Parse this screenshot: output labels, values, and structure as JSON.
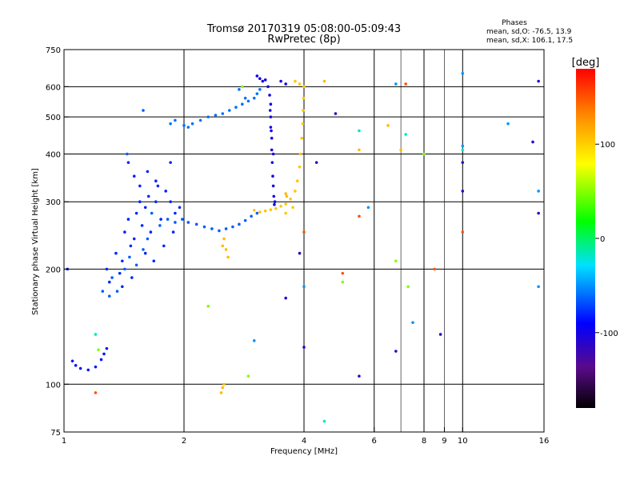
{
  "chart_data": {
    "type": "scatter",
    "title": "Tromsø 20170319 05:08:00-05:09:43",
    "subtitle": "RwPretec (8p)",
    "xlabel": "Frequency [MHz]",
    "ylabel": "Stationary phase Virtual Height [km]",
    "x_scale": "log",
    "y_scale": "log",
    "xlim": [
      1,
      16
    ],
    "ylim": [
      75,
      750
    ],
    "x_ticks": [
      1,
      2,
      4,
      6,
      8,
      9,
      10,
      16
    ],
    "y_ticks": [
      75,
      100,
      200,
      300,
      400,
      500,
      600,
      750
    ],
    "grid_x": [
      2,
      4,
      6,
      8,
      10
    ],
    "grid_y": [
      100,
      200,
      300,
      400,
      500,
      600
    ],
    "grid_minor_x": [
      7,
      9
    ],
    "grid": true,
    "phase_stats": {
      "heading": "Phases",
      "line_o": "mean, sd,O: -76.5, 13.9",
      "line_x": "mean, sd,X: 106.1, 17.5"
    },
    "colorbar": {
      "label": "[deg]",
      "range": [
        -180,
        180
      ],
      "ticks": [
        100,
        0,
        -100
      ],
      "colormap": "rainbow: black(-180) → purple → blue → cyan → green → yellow → orange → red(+180)"
    },
    "trace_groups": [
      {
        "phase": -95,
        "points": [
          [
            1.07,
            112
          ],
          [
            1.1,
            110
          ],
          [
            1.15,
            109
          ],
          [
            1.2,
            111
          ],
          [
            1.24,
            116
          ],
          [
            1.26,
            120
          ],
          [
            1.28,
            124
          ],
          [
            1.05,
            115
          ],
          [
            1.02,
            200
          ]
        ]
      },
      {
        "phase": -90,
        "points": [
          [
            1.28,
            200
          ],
          [
            1.3,
            185
          ],
          [
            1.35,
            220
          ],
          [
            1.38,
            195
          ],
          [
            1.4,
            210
          ],
          [
            1.42,
            250
          ],
          [
            1.45,
            270
          ],
          [
            1.47,
            230
          ],
          [
            1.5,
            240
          ],
          [
            1.52,
            280
          ],
          [
            1.55,
            300
          ],
          [
            1.57,
            260
          ],
          [
            1.6,
            290
          ],
          [
            1.63,
            310
          ],
          [
            1.65,
            250
          ],
          [
            1.7,
            300
          ],
          [
            1.72,
            330
          ],
          [
            1.75,
            270
          ],
          [
            1.8,
            320
          ],
          [
            1.85,
            300
          ],
          [
            1.9,
            280
          ],
          [
            1.95,
            290
          ],
          [
            1.5,
            350
          ],
          [
            1.55,
            330
          ],
          [
            1.45,
            380
          ],
          [
            1.62,
            360
          ],
          [
            1.7,
            340
          ],
          [
            1.85,
            380
          ],
          [
            1.4,
            180
          ],
          [
            1.48,
            190
          ],
          [
            1.6,
            220
          ],
          [
            1.68,
            210
          ],
          [
            1.78,
            230
          ],
          [
            1.88,
            250
          ]
        ]
      },
      {
        "phase": -75,
        "points": [
          [
            1.32,
            190
          ],
          [
            1.36,
            175
          ],
          [
            1.42,
            200
          ],
          [
            1.46,
            215
          ],
          [
            1.52,
            205
          ],
          [
            1.58,
            225
          ],
          [
            1.62,
            240
          ],
          [
            1.66,
            280
          ],
          [
            1.74,
            260
          ],
          [
            1.82,
            270
          ],
          [
            1.9,
            265
          ],
          [
            1.98,
            270
          ],
          [
            2.05,
            265
          ],
          [
            2.15,
            262
          ],
          [
            2.25,
            258
          ],
          [
            2.35,
            255
          ],
          [
            2.45,
            252
          ],
          [
            2.55,
            255
          ],
          [
            2.65,
            258
          ],
          [
            2.75,
            262
          ],
          [
            2.85,
            268
          ],
          [
            2.95,
            275
          ],
          [
            3.05,
            280
          ],
          [
            1.3,
            170
          ],
          [
            1.25,
            175
          ],
          [
            1.44,
            400
          ],
          [
            1.58,
            520
          ]
        ]
      },
      {
        "phase": -70,
        "points": [
          [
            1.85,
            480
          ],
          [
            1.9,
            490
          ],
          [
            2.0,
            475
          ],
          [
            2.05,
            470
          ],
          [
            2.1,
            480
          ],
          [
            2.2,
            490
          ],
          [
            2.3,
            500
          ],
          [
            2.4,
            505
          ],
          [
            2.5,
            510
          ],
          [
            2.6,
            520
          ],
          [
            2.7,
            530
          ],
          [
            2.8,
            540
          ],
          [
            2.9,
            550
          ],
          [
            3.0,
            560
          ],
          [
            3.05,
            575
          ],
          [
            3.1,
            590
          ],
          [
            2.85,
            560
          ],
          [
            2.75,
            590
          ]
        ]
      },
      {
        "phase": -110,
        "points": [
          [
            3.05,
            640
          ],
          [
            3.1,
            630
          ],
          [
            3.15,
            620
          ],
          [
            3.2,
            625
          ],
          [
            3.25,
            600
          ],
          [
            3.28,
            570
          ],
          [
            3.3,
            540
          ],
          [
            3.3,
            500
          ],
          [
            3.3,
            470
          ],
          [
            3.32,
            440
          ],
          [
            3.32,
            410
          ],
          [
            3.33,
            380
          ],
          [
            3.34,
            350
          ],
          [
            3.35,
            330
          ],
          [
            3.36,
            310
          ],
          [
            3.37,
            295
          ],
          [
            3.38,
            300
          ],
          [
            3.29,
            520
          ],
          [
            3.31,
            460
          ],
          [
            3.35,
            400
          ],
          [
            3.5,
            620
          ],
          [
            3.6,
            610
          ]
        ]
      },
      {
        "phase": 105,
        "points": [
          [
            3.0,
            285
          ],
          [
            3.1,
            282
          ],
          [
            3.2,
            284
          ],
          [
            3.3,
            286
          ],
          [
            3.4,
            288
          ],
          [
            3.5,
            292
          ],
          [
            3.6,
            296
          ],
          [
            3.7,
            305
          ],
          [
            3.8,
            320
          ],
          [
            3.85,
            340
          ],
          [
            3.9,
            370
          ],
          [
            3.92,
            400
          ],
          [
            3.95,
            440
          ],
          [
            3.97,
            480
          ],
          [
            3.98,
            520
          ],
          [
            3.99,
            560
          ],
          [
            4.0,
            600
          ],
          [
            3.9,
            610
          ],
          [
            3.8,
            620
          ],
          [
            3.6,
            280
          ],
          [
            3.75,
            290
          ]
        ]
      },
      {
        "phase": 110,
        "points": [
          [
            2.5,
            230
          ],
          [
            2.52,
            240
          ],
          [
            2.55,
            225
          ],
          [
            2.58,
            215
          ],
          [
            2.48,
            95
          ],
          [
            2.5,
            98
          ],
          [
            2.52,
            100
          ],
          [
            3.6,
            315
          ],
          [
            3.62,
            310
          ],
          [
            4.5,
            620
          ],
          [
            6.5,
            475
          ],
          [
            7.0,
            410
          ],
          [
            5.5,
            410
          ]
        ]
      },
      {
        "phase": 150,
        "points": [
          [
            1.2,
            95
          ],
          [
            4.0,
            250
          ],
          [
            5.0,
            195
          ],
          [
            8.5,
            200
          ],
          [
            10.0,
            250
          ],
          [
            7.2,
            610
          ],
          [
            5.5,
            275
          ]
        ]
      },
      {
        "phase": -60,
        "points": [
          [
            4.0,
            180
          ],
          [
            3.0,
            130
          ],
          [
            5.8,
            290
          ],
          [
            6.8,
            610
          ],
          [
            10.0,
            650
          ],
          [
            13.0,
            480
          ],
          [
            15.5,
            180
          ],
          [
            15.5,
            320
          ],
          [
            10.0,
            420
          ],
          [
            7.5,
            145
          ]
        ]
      },
      {
        "phase": -120,
        "points": [
          [
            3.6,
            168
          ],
          [
            4.0,
            125
          ],
          [
            4.3,
            380
          ],
          [
            4.8,
            510
          ],
          [
            5.5,
            105
          ],
          [
            6.8,
            122
          ],
          [
            8.8,
            135
          ],
          [
            10.0,
            380
          ],
          [
            15.0,
            430
          ],
          [
            15.5,
            620
          ],
          [
            15.5,
            280
          ],
          [
            10.0,
            320
          ],
          [
            3.9,
            220
          ]
        ]
      },
      {
        "phase": 40,
        "points": [
          [
            1.22,
            123
          ],
          [
            2.3,
            160
          ],
          [
            2.8,
            600
          ],
          [
            5.0,
            185
          ],
          [
            6.8,
            210
          ],
          [
            7.3,
            180
          ],
          [
            8.0,
            400
          ],
          [
            2.9,
            105
          ]
        ]
      },
      {
        "phase": -30,
        "points": [
          [
            1.2,
            135
          ],
          [
            4.5,
            80
          ],
          [
            5.5,
            460
          ],
          [
            7.2,
            450
          ],
          [
            10.0,
            410
          ]
        ]
      }
    ]
  }
}
